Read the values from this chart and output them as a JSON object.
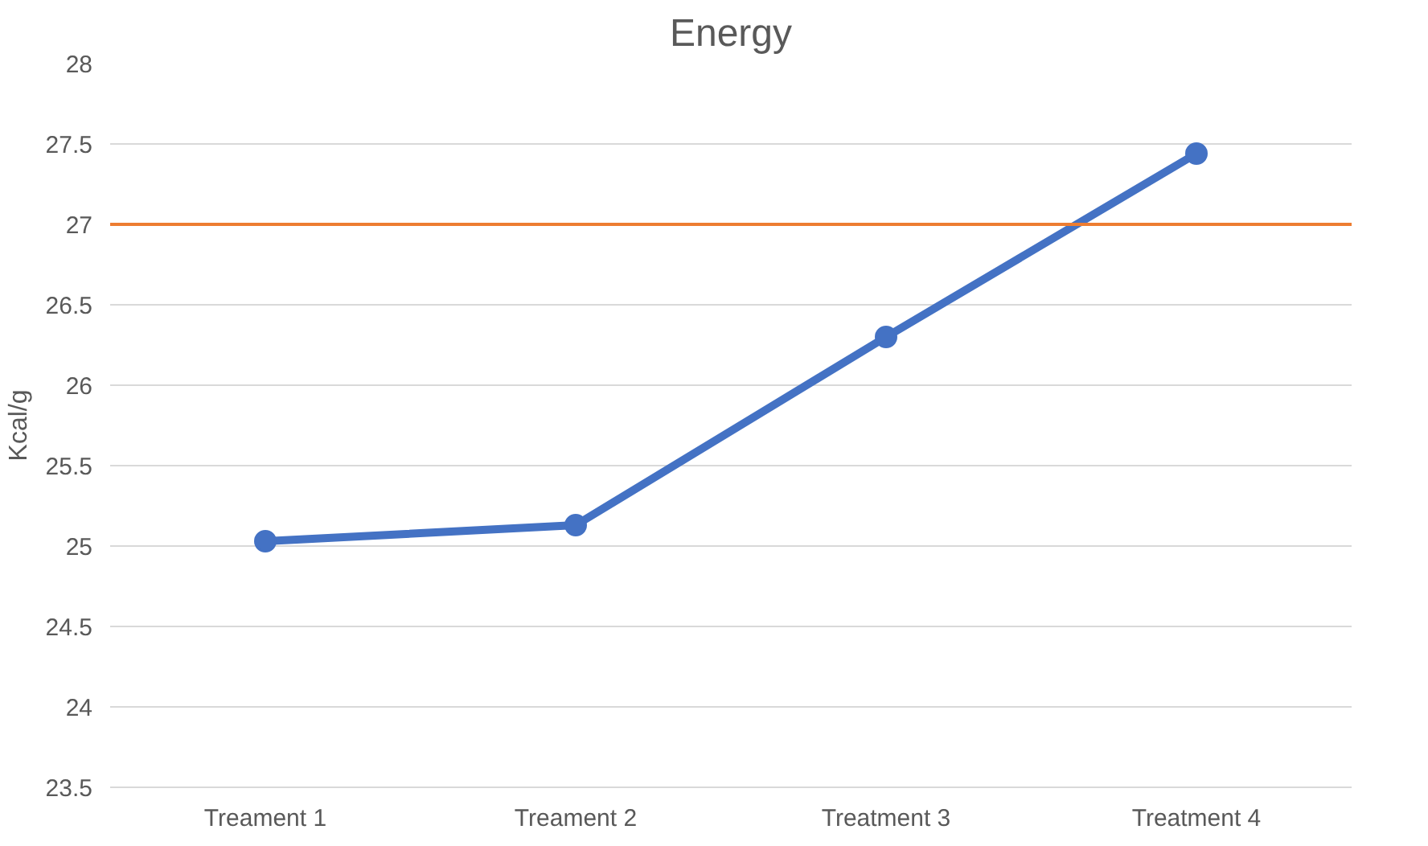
{
  "chart_data": {
    "type": "line",
    "title": "Energy",
    "ylabel": "Kcal/g",
    "categories": [
      "Treament 1",
      "Treament 2",
      "Treatment 3",
      "Treatment 4"
    ],
    "series": [
      {
        "color": "#4472c4",
        "values": [
          25.03,
          25.13,
          26.3,
          27.44
        ]
      }
    ],
    "ylim": [
      23.5,
      28
    ],
    "yticks": [
      23.5,
      24,
      24.5,
      25,
      25.5,
      26,
      26.5,
      27,
      27.5,
      28
    ],
    "grid": "y",
    "marker": "circle",
    "line_style": "solid",
    "ref_lines": [
      {
        "axis": "y",
        "value": 27,
        "color": "#ed7d31"
      }
    ]
  }
}
